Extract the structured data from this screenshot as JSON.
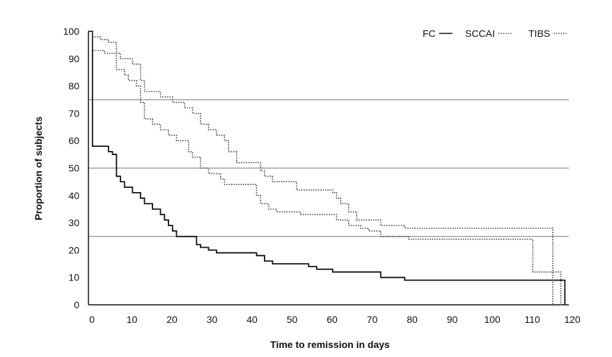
{
  "chart_data": {
    "type": "line",
    "title": "",
    "xlabel": "Time to remission in days",
    "ylabel": "Proportion of subjects",
    "xlim": [
      0,
      120
    ],
    "ylim": [
      0,
      100
    ],
    "x_ticks": [
      0,
      10,
      20,
      30,
      40,
      50,
      60,
      70,
      80,
      90,
      100,
      110,
      120
    ],
    "y_ticks": [
      0,
      10,
      20,
      30,
      40,
      50,
      60,
      70,
      80,
      90,
      100
    ],
    "reference_lines": [
      25,
      50,
      75
    ],
    "legend_position": "top-right",
    "series": [
      {
        "name": "FC",
        "style": "solid",
        "steps": [
          [
            0,
            100
          ],
          [
            1,
            58
          ],
          [
            5,
            56
          ],
          [
            6,
            55
          ],
          [
            7,
            47
          ],
          [
            8,
            45
          ],
          [
            9,
            43
          ],
          [
            11,
            41
          ],
          [
            13,
            39
          ],
          [
            14,
            37
          ],
          [
            16,
            35
          ],
          [
            18,
            33
          ],
          [
            19,
            31
          ],
          [
            20,
            29
          ],
          [
            21,
            27
          ],
          [
            22,
            25
          ],
          [
            27,
            22
          ],
          [
            28,
            21
          ],
          [
            30,
            20
          ],
          [
            32,
            19
          ],
          [
            42,
            18
          ],
          [
            44,
            16
          ],
          [
            46,
            15
          ],
          [
            55,
            14
          ],
          [
            57,
            13
          ],
          [
            61,
            12
          ],
          [
            73,
            10
          ],
          [
            79,
            9
          ],
          [
            119,
            9
          ],
          [
            119,
            0
          ]
        ]
      },
      {
        "name": "SCCAI",
        "style": "dotted",
        "steps": [
          [
            0,
            100
          ],
          [
            1,
            93
          ],
          [
            4,
            92
          ],
          [
            7,
            86
          ],
          [
            9,
            84
          ],
          [
            10,
            82
          ],
          [
            12,
            80
          ],
          [
            13,
            74
          ],
          [
            14,
            68
          ],
          [
            16,
            66
          ],
          [
            18,
            64
          ],
          [
            20,
            62
          ],
          [
            22,
            60
          ],
          [
            25,
            56
          ],
          [
            26,
            54
          ],
          [
            28,
            50
          ],
          [
            30,
            48
          ],
          [
            33,
            46
          ],
          [
            34,
            44
          ],
          [
            40,
            44
          ],
          [
            42,
            40
          ],
          [
            43,
            37
          ],
          [
            45,
            35
          ],
          [
            47,
            34
          ],
          [
            53,
            33
          ],
          [
            62,
            31
          ],
          [
            65,
            29
          ],
          [
            68,
            28
          ],
          [
            70,
            27
          ],
          [
            73,
            25
          ],
          [
            80,
            24
          ],
          [
            111,
            24
          ],
          [
            111,
            12
          ],
          [
            116,
            12
          ],
          [
            116,
            0
          ]
        ]
      },
      {
        "name": "TIBS",
        "style": "dotted",
        "steps": [
          [
            0,
            100
          ],
          [
            1,
            98
          ],
          [
            3,
            97
          ],
          [
            5,
            96
          ],
          [
            7,
            92
          ],
          [
            8,
            90
          ],
          [
            11,
            88
          ],
          [
            13,
            82
          ],
          [
            14,
            78
          ],
          [
            18,
            76
          ],
          [
            21,
            74
          ],
          [
            24,
            72
          ],
          [
            26,
            70
          ],
          [
            28,
            66
          ],
          [
            30,
            64
          ],
          [
            32,
            62
          ],
          [
            34,
            60
          ],
          [
            35,
            56
          ],
          [
            37,
            52
          ],
          [
            42,
            52
          ],
          [
            43,
            49
          ],
          [
            44,
            47
          ],
          [
            46,
            45
          ],
          [
            52,
            42
          ],
          [
            61,
            41
          ],
          [
            62,
            39
          ],
          [
            63,
            37
          ],
          [
            65,
            34
          ],
          [
            67,
            31
          ],
          [
            73,
            29
          ],
          [
            79,
            28
          ],
          [
            116,
            28
          ],
          [
            116,
            12
          ],
          [
            118,
            12
          ],
          [
            118,
            0
          ]
        ]
      }
    ]
  },
  "colors": {
    "axis": "#111111",
    "fc": "#111111",
    "dotted": "#444444",
    "reference": "#777777"
  }
}
